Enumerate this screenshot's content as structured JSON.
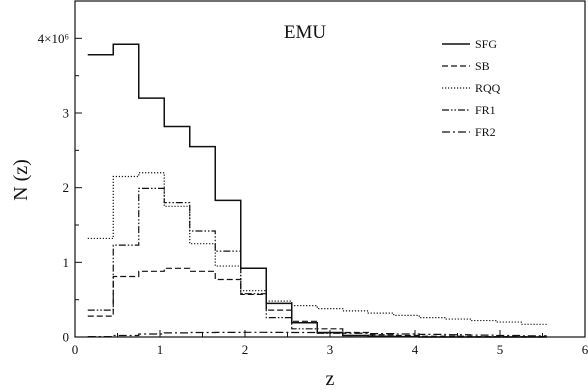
{
  "chart_data": {
    "type": "line",
    "title": "EMU",
    "xlabel": "z",
    "ylabel": "N (z)",
    "xlim": [
      0,
      6
    ],
    "ylim": [
      0,
      4500000
    ],
    "x_ticks": [
      0,
      1,
      2,
      3,
      4,
      5,
      6
    ],
    "x_tick_labels": [
      "0",
      "1",
      "2",
      "3",
      "4",
      "5",
      "6"
    ],
    "y_ticks": [
      0,
      1000000,
      2000000,
      3000000,
      4000000
    ],
    "y_tick_labels": [
      "0",
      "1",
      "2",
      "3",
      "4×10⁶"
    ],
    "grid": false,
    "legend_position": "top-right",
    "bin_edges": [
      0.15,
      0.45,
      0.75,
      1.05,
      1.35,
      1.65,
      1.95,
      2.25,
      2.55,
      2.85,
      3.15,
      3.45,
      3.75,
      4.05,
      4.35,
      4.65,
      4.95,
      5.25,
      5.55
    ],
    "series": [
      {
        "name": "SFG",
        "dash": "solid",
        "values": [
          3780000,
          3920000,
          3200000,
          2820000,
          2550000,
          1830000,
          920000,
          450000,
          190000,
          60000,
          20000,
          10000,
          5000,
          0,
          0,
          0,
          0,
          0
        ]
      },
      {
        "name": "SB",
        "dash": "dashed",
        "values": [
          280000,
          810000,
          880000,
          920000,
          880000,
          770000,
          570000,
          360000,
          210000,
          110000,
          60000,
          30000,
          20000,
          10000,
          10000,
          5000,
          5000,
          5000
        ]
      },
      {
        "name": "RQQ",
        "dash": "dotted",
        "values": [
          1320000,
          2150000,
          2200000,
          1750000,
          1250000,
          950000,
          620000,
          480000,
          420000,
          380000,
          350000,
          320000,
          290000,
          260000,
          240000,
          220000,
          200000,
          170000
        ]
      },
      {
        "name": "FR1",
        "dash": "dash-dot-dot",
        "values": [
          360000,
          1230000,
          1990000,
          1800000,
          1420000,
          1150000,
          580000,
          260000,
          110000,
          50000,
          20000,
          10000,
          5000,
          0,
          0,
          0,
          0,
          0
        ]
      },
      {
        "name": "FR2",
        "dash": "dash-dot",
        "values": [
          5000,
          20000,
          40000,
          55000,
          60000,
          62000,
          63000,
          62000,
          60000,
          55000,
          50000,
          45000,
          40000,
          35000,
          30000,
          25000,
          20000,
          15000
        ]
      }
    ]
  }
}
